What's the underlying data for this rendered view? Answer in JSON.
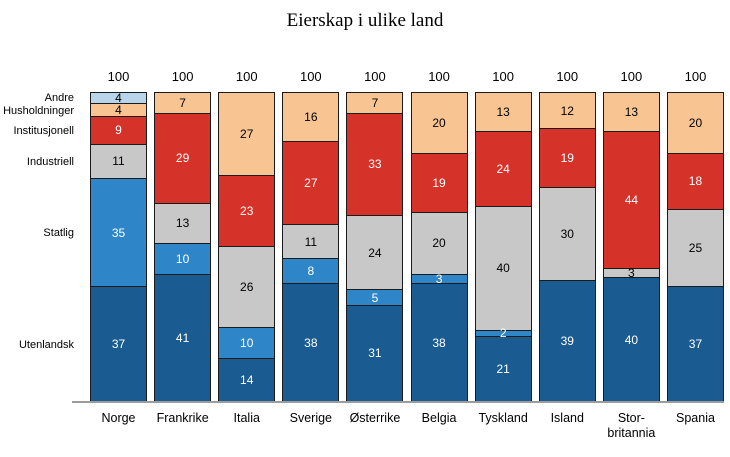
{
  "chart_data": {
    "type": "bar",
    "stacked": true,
    "title": "Eierskap i ulike land",
    "total_label": "100",
    "ylim": [
      0,
      100
    ],
    "grid": false,
    "legend_position": "left-axis",
    "axis_line_color": "#9c9c9c",
    "segment_border_color": "#1b1b1b",
    "categories": [
      "Norge",
      "Frankrike",
      "Italia",
      "Sverige",
      "Østerrike",
      "Belgia",
      "Tyskland",
      "Island",
      "Stor-\nbritannia",
      "Spania"
    ],
    "series": [
      {
        "name": "Utenlandsk",
        "color": "#1a5c92",
        "label_color": "#ffffff",
        "values": [
          37,
          41,
          14,
          38,
          31,
          38,
          21,
          39,
          40,
          37
        ]
      },
      {
        "name": "Statlig",
        "color": "#2e86c9",
        "label_color": "#ffffff",
        "values": [
          35,
          10,
          10,
          8,
          5,
          3,
          2,
          0,
          0,
          0
        ]
      },
      {
        "name": "Industriell",
        "color": "#c8c8c8",
        "label_color": "#000000",
        "values": [
          11,
          13,
          26,
          11,
          24,
          20,
          40,
          30,
          3,
          25
        ]
      },
      {
        "name": "Institusjonell",
        "color": "#d5322a",
        "label_color": "#ffffff",
        "values": [
          9,
          29,
          23,
          27,
          33,
          19,
          24,
          19,
          44,
          18
        ]
      },
      {
        "name": "Husholdninger",
        "color": "#f8c491",
        "label_color": "#000000",
        "values": [
          4,
          7,
          27,
          16,
          7,
          20,
          13,
          12,
          13,
          20
        ]
      },
      {
        "name": "Andre",
        "color": "#b9d5ec",
        "label_color": "#000000",
        "values": [
          4,
          0,
          0,
          0,
          0,
          0,
          0,
          0,
          0,
          0
        ]
      }
    ]
  }
}
